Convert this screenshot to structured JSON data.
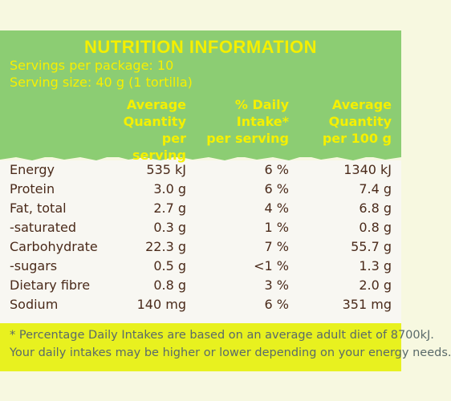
{
  "title": "NUTRITION INFORMATION",
  "servings_per_package": "Servings per package: 10",
  "serving_size": "Serving size: 40 g (1 tortilla)",
  "columns": {
    "avg_serving": [
      "Average",
      "Quantity",
      "per serving"
    ],
    "daily_intake": [
      "% Daily",
      "Intake*",
      "per serving"
    ],
    "avg_100g": [
      "Average",
      "Quantity",
      "per 100 g"
    ]
  },
  "rows": [
    {
      "label": "Energy",
      "avg": "535 kJ",
      "di": "6 %",
      "per100": "1340 kJ"
    },
    {
      "label": "Protein",
      "avg": "3.0 g",
      "di": "6 %",
      "per100": "7.4 g"
    },
    {
      "label": "Fat, total",
      "avg": "2.7 g",
      "di": "4 %",
      "per100": "6.8 g"
    },
    {
      "label": "-saturated",
      "avg": "0.3 g",
      "di": "1 %",
      "per100": "0.8 g"
    },
    {
      "label": "Carbohydrate",
      "avg": "22.3 g",
      "di": "7 %",
      "per100": "55.7 g"
    },
    {
      "label": "-sugars",
      "avg": "0.5 g",
      "di": "<1 %",
      "per100": "1.3 g"
    },
    {
      "label": "Dietary fibre",
      "avg": "0.8 g",
      "di": "3 %",
      "per100": "2.0 g"
    },
    {
      "label": "Sodium",
      "avg": "140 mg",
      "di": "6 %",
      "per100": "351 mg"
    }
  ],
  "footnote": [
    "* Percentage Daily Intakes are based on an average adult diet of 8700kJ.",
    "Your daily intakes may be higher or lower depending on your energy needs."
  ],
  "colors": {
    "header_green": "#8ccd73",
    "title_yellow": "#f4ef00",
    "footer_yellow": "#e8f11f",
    "text_brown": "#4a2a1a"
  }
}
